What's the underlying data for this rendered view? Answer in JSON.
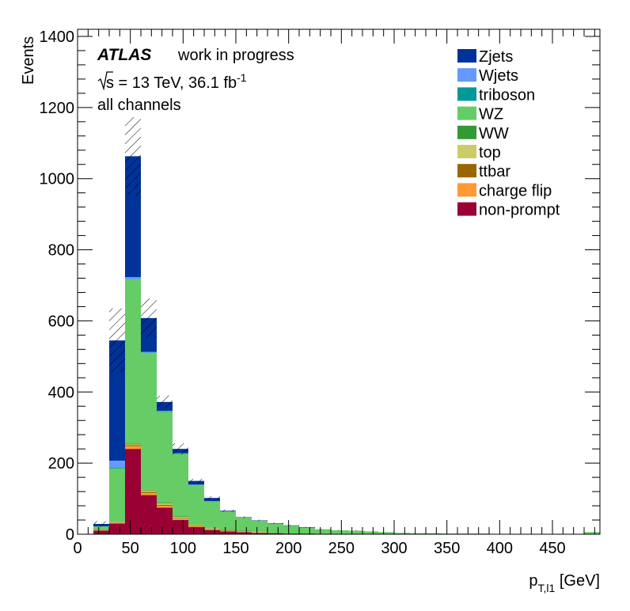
{
  "chart_data": {
    "type": "bar",
    "stacked": true,
    "histogram": true,
    "xlabel_main": "p",
    "xlabel_sub": "T,l1",
    "xlabel_unit": " [GeV]",
    "ylabel": "Events",
    "xlim": [
      0,
      495
    ],
    "ylim": [
      0,
      1420
    ],
    "xticks": [
      0,
      50,
      100,
      150,
      200,
      250,
      300,
      350,
      400,
      450
    ],
    "yticks": [
      0,
      200,
      400,
      600,
      800,
      1000,
      1200,
      1400
    ],
    "bin_width": 15,
    "bin_edges_start": 15,
    "annotations": {
      "atlas": "ATLAS",
      "status": "work in progress",
      "sqrt_s": "s",
      "energy_lumi": " = 13 TeV, 36.1 fb",
      "lumi_exp": "-1",
      "selection": "all channels"
    },
    "series": [
      {
        "name": "non-prompt",
        "color": "#990033",
        "values": [
          10,
          30,
          240,
          110,
          75,
          40,
          20,
          12,
          8,
          6,
          4,
          3,
          2,
          2,
          1,
          1,
          1,
          1,
          1,
          0,
          0,
          0,
          0,
          0,
          0,
          0,
          0,
          0,
          0,
          0,
          0,
          0
        ]
      },
      {
        "name": "charge flip",
        "color": "#ff9933",
        "values": [
          1,
          2,
          8,
          6,
          5,
          4,
          3,
          2,
          1,
          1,
          1,
          0,
          0,
          0,
          0,
          0,
          0,
          0,
          0,
          0,
          0,
          0,
          0,
          0,
          0,
          0,
          0,
          0,
          0,
          0,
          0,
          0
        ]
      },
      {
        "name": "ttbar",
        "color": "#996600",
        "values": [
          0,
          1,
          3,
          3,
          3,
          2,
          2,
          1,
          1,
          1,
          0,
          0,
          0,
          0,
          0,
          0,
          0,
          0,
          0,
          0,
          0,
          0,
          0,
          0,
          0,
          0,
          0,
          0,
          0,
          0,
          0,
          0
        ]
      },
      {
        "name": "top",
        "color": "#cccc66",
        "values": [
          0,
          1,
          2,
          4,
          4,
          3,
          2,
          2,
          1,
          1,
          1,
          0,
          0,
          0,
          0,
          0,
          0,
          0,
          0,
          0,
          0,
          0,
          0,
          0,
          0,
          0,
          0,
          0,
          0,
          0,
          0,
          0
        ]
      },
      {
        "name": "WW",
        "color": "#339933",
        "values": [
          1,
          1,
          2,
          2,
          2,
          2,
          1,
          1,
          1,
          1,
          0,
          0,
          0,
          0,
          0,
          0,
          0,
          0,
          0,
          0,
          0,
          0,
          0,
          0,
          0,
          0,
          0,
          0,
          0,
          0,
          0,
          0
        ]
      },
      {
        "name": "WZ",
        "color": "#66cc66",
        "values": [
          10,
          150,
          462,
          385,
          255,
          175,
          110,
          75,
          52,
          37,
          32,
          27,
          22,
          17,
          13,
          10,
          9,
          7,
          5,
          4,
          3,
          3,
          2,
          2,
          2,
          1,
          1,
          1,
          1,
          1,
          1,
          6
        ]
      },
      {
        "name": "triboson",
        "color": "#009999",
        "values": [
          0,
          2,
          1,
          1,
          1,
          1,
          1,
          0,
          0,
          0,
          0,
          0,
          0,
          0,
          0,
          0,
          0,
          0,
          0,
          0,
          0,
          0,
          0,
          0,
          0,
          0,
          0,
          0,
          0,
          0,
          0,
          0
        ]
      },
      {
        "name": "Wjets",
        "color": "#6699ff",
        "values": [
          0,
          20,
          5,
          2,
          2,
          1,
          1,
          0,
          0,
          0,
          0,
          0,
          0,
          0,
          0,
          0,
          0,
          0,
          0,
          0,
          0,
          0,
          0,
          0,
          0,
          0,
          0,
          0,
          0,
          0,
          0,
          0
        ]
      },
      {
        "name": "Zjets",
        "color": "#003399",
        "values": [
          7,
          338,
          340,
          95,
          25,
          12,
          10,
          9,
          2,
          1,
          1,
          1,
          1,
          1,
          0,
          0,
          0,
          0,
          0,
          0,
          0,
          0,
          0,
          0,
          0,
          0,
          0,
          0,
          0,
          0,
          0,
          0
        ]
      }
    ],
    "uncertainty": [
      8,
      90,
      110,
      55,
      18,
      16,
      6,
      5,
      3,
      2,
      2,
      2,
      1,
      1,
      1,
      1,
      1,
      1,
      0,
      0,
      0,
      0,
      0,
      0,
      0,
      0,
      0,
      0,
      0,
      0,
      0,
      0
    ],
    "legend_order": [
      "Zjets",
      "Wjets",
      "triboson",
      "WZ",
      "WW",
      "top",
      "ttbar",
      "charge flip",
      "non-prompt"
    ],
    "legend_position": "top-right",
    "grid": false
  }
}
